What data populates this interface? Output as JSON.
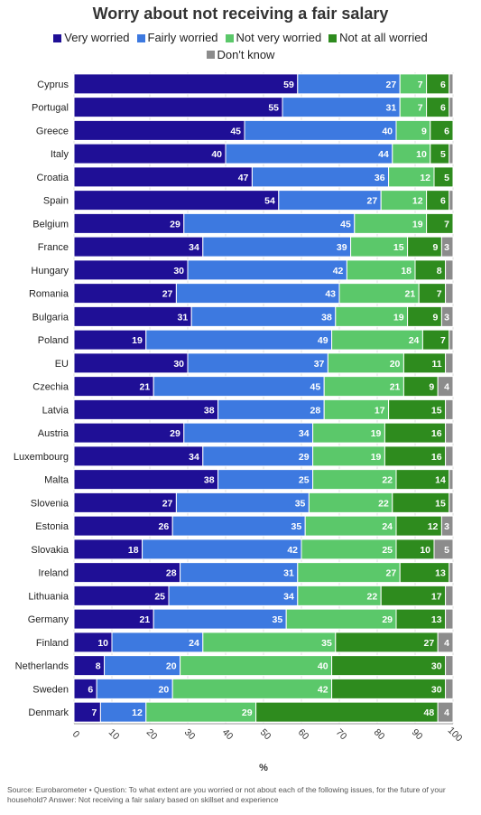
{
  "chart_data": {
    "type": "bar",
    "orientation": "horizontal",
    "stacked": true,
    "title": "Worry about not receiving a fair salary",
    "xlabel": "%",
    "xlim": [
      0,
      100
    ],
    "xticks": [
      0,
      10,
      20,
      30,
      40,
      50,
      60,
      70,
      80,
      90,
      100
    ],
    "grid": true,
    "legend_position": "top",
    "categories": [
      "Cyprus",
      "Portugal",
      "Greece",
      "Italy",
      "Croatia",
      "Spain",
      "Belgium",
      "France",
      "Hungary",
      "Romania",
      "Bulgaria",
      "Poland",
      "EU",
      "Czechia",
      "Latvia",
      "Austria",
      "Luxembourg",
      "Malta",
      "Slovenia",
      "Estonia",
      "Slovakia",
      "Ireland",
      "Lithuania",
      "Germany",
      "Finland",
      "Netherlands",
      "Sweden",
      "Denmark"
    ],
    "series": [
      {
        "name": "Very worried",
        "color": "#1f0f96",
        "values": [
          59,
          55,
          45,
          40,
          47,
          54,
          29,
          34,
          30,
          27,
          31,
          19,
          30,
          21,
          38,
          29,
          34,
          38,
          27,
          26,
          18,
          28,
          25,
          21,
          10,
          8,
          6,
          7
        ]
      },
      {
        "name": "Fairly worried",
        "color": "#3d79e0",
        "values": [
          27,
          31,
          40,
          44,
          36,
          27,
          45,
          39,
          42,
          43,
          38,
          49,
          37,
          45,
          28,
          34,
          29,
          25,
          35,
          35,
          42,
          31,
          34,
          35,
          24,
          20,
          20,
          12
        ]
      },
      {
        "name": "Not very worried",
        "color": "#5bc86a",
        "values": [
          7,
          7,
          9,
          10,
          12,
          12,
          19,
          15,
          18,
          21,
          19,
          24,
          20,
          21,
          17,
          19,
          19,
          22,
          22,
          24,
          25,
          27,
          22,
          29,
          35,
          40,
          42,
          29
        ]
      },
      {
        "name": "Not at all worried",
        "color": "#2e8b1e",
        "values": [
          6,
          6,
          6,
          5,
          5,
          6,
          7,
          9,
          8,
          7,
          9,
          7,
          11,
          9,
          15,
          16,
          16,
          14,
          15,
          12,
          10,
          13,
          17,
          13,
          27,
          30,
          30,
          48
        ]
      },
      {
        "name": "Don't know",
        "color": "#8c8c8c",
        "values": [
          1,
          1,
          0,
          1,
          0,
          1,
          0,
          3,
          2,
          2,
          3,
          1,
          2,
          4,
          2,
          2,
          2,
          1,
          1,
          3,
          5,
          1,
          2,
          2,
          4,
          2,
          2,
          4
        ]
      }
    ]
  },
  "source": "Source: Eurobarometer • Question: To what extent are you worried or not about each of the following issues, for the future of your household? Answer: Not receiving a fair salary based on skillset and experience"
}
